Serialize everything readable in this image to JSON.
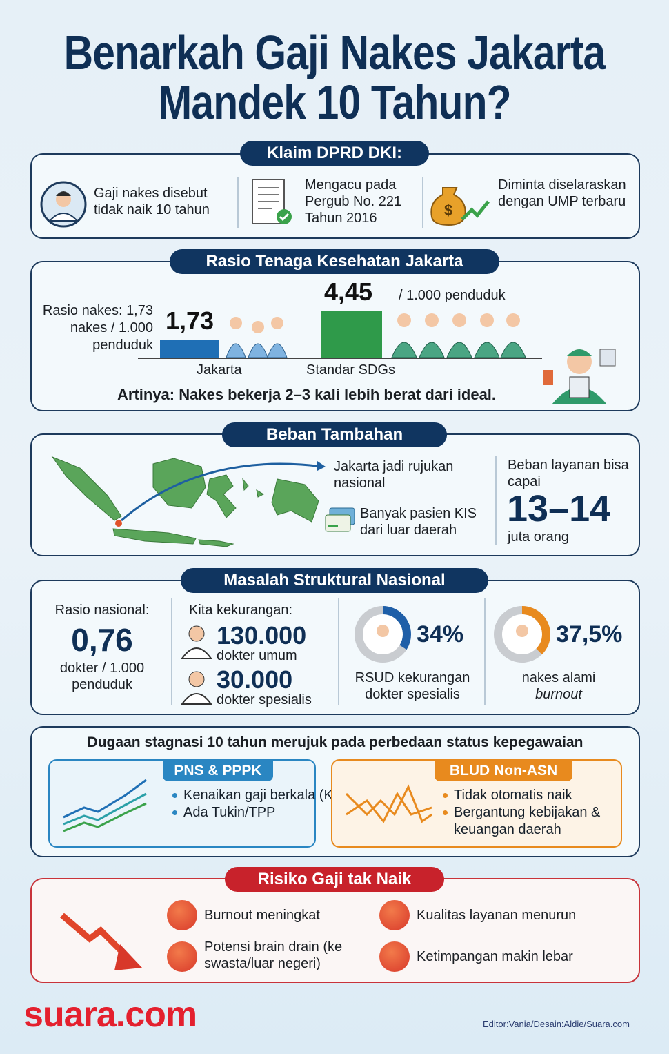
{
  "title": {
    "line1": "Benarkah Gaji Nakes Jakarta",
    "line2": "Mandek 10 Tahun?"
  },
  "klaim": {
    "header": "Klaim DPRD DKI:",
    "items": [
      {
        "icon": "doctor-avatar-icon",
        "text": "Gaji nakes disebut tidak naik 10 tahun"
      },
      {
        "icon": "document-check-icon",
        "text": "Mengacu pada Pergub No. 221 Tahun 2016"
      },
      {
        "icon": "money-bag-growth-icon",
        "text": "Diminta diselaraskan dengan UMP terbaru"
      }
    ]
  },
  "rasio": {
    "header": "Rasio Tenaga Kesehatan Jakarta",
    "side_label": "Rasio nakes: 1,73 nakes / 1.000 penduduk",
    "unit": "/ 1.000 penduduk",
    "bars": [
      {
        "label": "Jakarta",
        "value": 1.73,
        "value_label": "1,73",
        "color": "#1f6fb5"
      },
      {
        "label": "Standar SDGs",
        "value": 4.45,
        "value_label": "4,45",
        "color": "#2f9a4a"
      }
    ],
    "note": "Artinya: Nakes bekerja 2–3 kali lebih berat dari ideal."
  },
  "beban": {
    "header": "Beban Tambahan",
    "rujukan": "Jakarta jadi rujukan nasional",
    "kis": "Banyak pasien KIS dari luar daerah",
    "layanan_label": "Beban layanan bisa capai",
    "layanan_value": "13–14",
    "layanan_unit": "juta orang"
  },
  "masalah": {
    "header": "Masalah Struktural Nasional",
    "rasio_label": "Rasio nasional:",
    "rasio_value": "0,76",
    "rasio_unit": "dokter / 1.000 penduduk",
    "kurang_label": "Kita kekurangan:",
    "kurang": [
      {
        "value": "130.000",
        "label": "dokter umum"
      },
      {
        "value": "30.000",
        "label": "dokter spesialis"
      }
    ],
    "donuts": [
      {
        "percent": 34,
        "label": "34%",
        "caption": "RSUD kekurangan dokter spesialis",
        "color": "#1f5fa8"
      },
      {
        "percent": 37.5,
        "label": "37,5%",
        "caption_prefix": "nakes alami",
        "caption_em": "burnout",
        "color": "#e88a1e"
      }
    ]
  },
  "status": {
    "heading": "Dugaan stagnasi 10 tahun merujuk pada perbedaan status kepegawaian",
    "pns": {
      "title": "PNS & PPPK",
      "color": "#2a86c2",
      "items": [
        "Kenaikan gaji berkala (KGB)",
        "Ada Tukin/TPP"
      ]
    },
    "blud": {
      "title": "BLUD Non-ASN",
      "color": "#e88a1e",
      "items": [
        "Tidak otomatis naik",
        "Bergantung kebijakan & keuangan daerah"
      ]
    }
  },
  "risiko": {
    "header": "Risiko Gaji tak Naik",
    "items": [
      {
        "icon": "burnout-icon",
        "text": "Burnout meningkat"
      },
      {
        "icon": "declining-quality-icon",
        "text": "Kualitas layanan menurun"
      },
      {
        "icon": "brain-drain-icon",
        "text": "Potensi brain drain (ke swasta/luar negeri)"
      },
      {
        "icon": "inequality-icon",
        "text": "Ketimpangan makin lebar"
      }
    ]
  },
  "footer": {
    "logo": "suara.com",
    "credit": "Editor:Vania/Desain:Aldie/Suara.com"
  }
}
